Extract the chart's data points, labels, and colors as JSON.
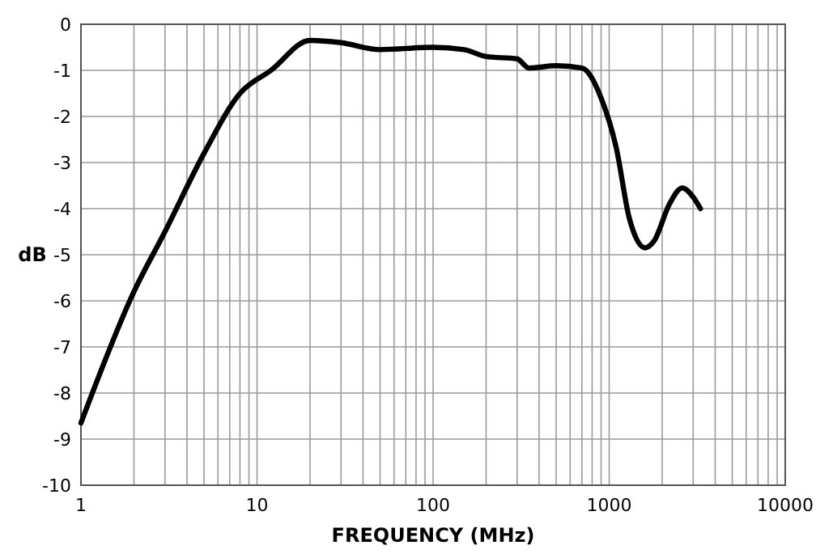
{
  "chart_data": {
    "type": "line",
    "xlabel": "FREQUENCY (MHz)",
    "ylabel": "dB",
    "log": "x",
    "grid": true,
    "xlim": [
      1,
      10000
    ],
    "ylim": [
      -10,
      0
    ],
    "xticks": [
      1,
      {
        "value": 2,
        "label": null
      },
      {
        "value": 3,
        "label": null
      },
      {
        "value": 4,
        "label": null
      },
      {
        "value": 5,
        "label": null
      },
      {
        "value": 6,
        "label": null
      },
      {
        "value": 7,
        "label": null
      },
      {
        "value": 8,
        "label": null
      },
      {
        "value": 9,
        "label": null
      },
      10,
      {
        "value": 20,
        "label": null
      },
      {
        "value": 30,
        "label": null
      },
      {
        "value": 40,
        "label": null
      },
      {
        "value": 50,
        "label": null
      },
      {
        "value": 60,
        "label": null
      },
      {
        "value": 70,
        "label": null
      },
      {
        "value": 80,
        "label": null
      },
      {
        "value": 90,
        "label": null
      },
      100,
      {
        "value": 200,
        "label": null
      },
      {
        "value": 300,
        "label": null
      },
      {
        "value": 400,
        "label": null
      },
      {
        "value": 500,
        "label": null
      },
      {
        "value": 600,
        "label": null
      },
      {
        "value": 700,
        "label": null
      },
      {
        "value": 800,
        "label": null
      },
      {
        "value": 900,
        "label": null
      },
      1000,
      {
        "value": 2000,
        "label": null
      },
      {
        "value": 3000,
        "label": null
      },
      {
        "value": 4000,
        "label": null
      },
      {
        "value": 5000,
        "label": null
      },
      {
        "value": 6000,
        "label": null
      },
      {
        "value": 7000,
        "label": null
      },
      {
        "value": 8000,
        "label": null
      },
      {
        "value": 9000,
        "label": null
      },
      10000
    ],
    "yticks": [
      -10,
      -9,
      -8,
      -7,
      -6,
      -5,
      -4,
      -3,
      -2,
      -1,
      0
    ],
    "series": [
      {
        "color": "#000000",
        "x": [
          1,
          2,
          3,
          5,
          8,
          12,
          20,
          30,
          50,
          100,
          150,
          200,
          300,
          350,
          500,
          700,
          900,
          1100,
          1300,
          1600,
          1800,
          2200,
          2600,
          3000,
          3300
        ],
        "values": [
          -8.65,
          -5.8,
          -4.5,
          -2.8,
          -1.5,
          -1.0,
          -0.35,
          -0.4,
          -0.55,
          -0.5,
          -0.55,
          -0.7,
          -0.75,
          -0.95,
          -0.9,
          -0.95,
          -1.6,
          -2.7,
          -4.2,
          -4.85,
          -4.7,
          -3.9,
          -3.55,
          -3.75,
          -4.0
        ]
      }
    ]
  }
}
